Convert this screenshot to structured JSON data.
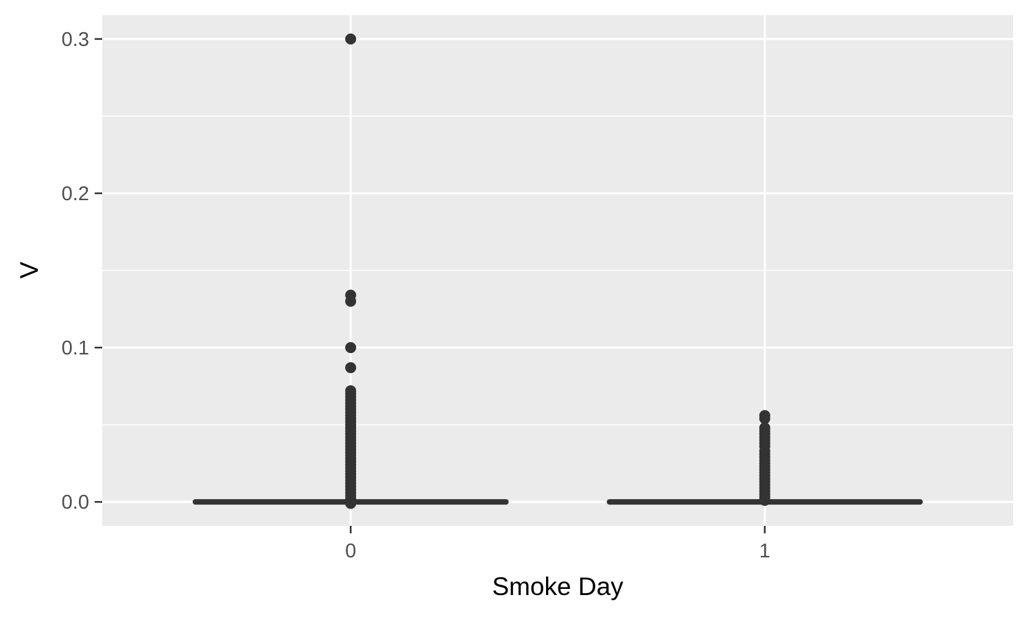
{
  "chart_data": {
    "type": "box",
    "title": "",
    "xlabel": "Smoke Day",
    "ylabel": "V",
    "categories": [
      "0",
      "1"
    ],
    "ylim": [
      -0.0155,
      0.3155
    ],
    "y_ticks": [
      0.0,
      0.1,
      0.2,
      0.3
    ],
    "y_tick_labels": [
      "0.0",
      "0.1",
      "0.2",
      "0.3"
    ],
    "x_tick_labels": [
      "0",
      "1"
    ],
    "grid": true,
    "legend": "none",
    "boxes": [
      {
        "category": "0",
        "min": 0.0,
        "q1": 0.0,
        "median": 0.0,
        "q3": 0.0,
        "max": 0.0,
        "outliers": [
          0.3,
          0.134,
          0.13,
          0.1,
          0.087,
          0.072,
          0.07,
          0.068,
          0.066,
          0.064,
          0.062,
          0.06,
          0.058,
          0.056,
          0.054,
          0.052,
          0.05,
          0.048,
          0.046,
          0.044,
          0.042,
          0.04,
          0.038,
          0.036,
          0.034,
          0.032,
          0.03,
          0.028,
          0.026,
          0.024,
          0.022,
          0.02,
          0.018,
          0.016,
          0.014,
          0.012,
          0.01,
          0.008,
          0.006,
          0.004,
          0.002,
          -0.001
        ]
      },
      {
        "category": "1",
        "min": 0.0,
        "q1": 0.0,
        "median": 0.0,
        "q3": 0.0,
        "max": 0.0,
        "outliers": [
          0.056,
          0.054,
          0.048,
          0.046,
          0.044,
          0.042,
          0.04,
          0.038,
          0.036,
          0.033,
          0.031,
          0.029,
          0.027,
          0.025,
          0.023,
          0.021,
          0.019,
          0.017,
          0.015,
          0.013,
          0.011,
          0.009,
          0.007,
          0.005,
          0.003,
          0.001
        ]
      }
    ],
    "colors": {
      "panel_background": "#ebebeb",
      "grid_major": "#ffffff",
      "grid_minor": "#ffffff",
      "box_line": "#333333",
      "point": "#333333",
      "tick_mark": "#333333",
      "tick_label": "#4d4d4d",
      "axis_title": "#000000"
    }
  }
}
